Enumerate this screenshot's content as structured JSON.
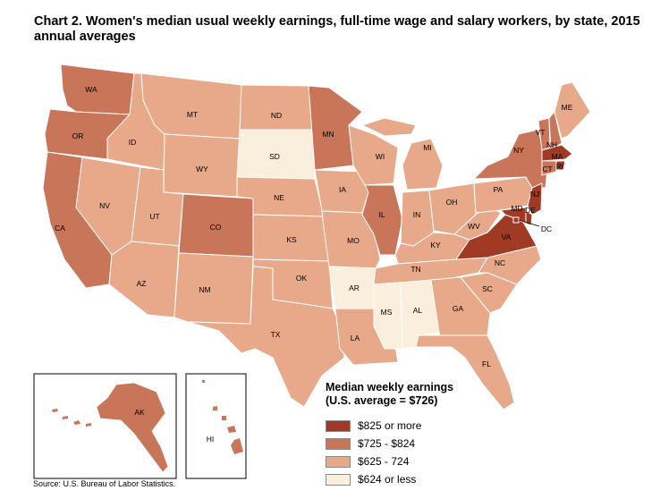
{
  "title": "Chart 2. Women's median usual weekly earnings, full-time wage and salary workers, by state, 2015 annual averages",
  "source": "Source: U.S. Bureau of Labor Statistics.",
  "legend": {
    "title": "Median weekly earnings",
    "subtitle": "(U.S. average = $726)",
    "items": [
      {
        "label": "$825 or more",
        "color": "#a13a24"
      },
      {
        "label": "$725 - $824",
        "color": "#c97559"
      },
      {
        "label": "$625 - 724",
        "color": "#e8a98a"
      },
      {
        "label": "$624 or less",
        "color": "#faeedd"
      }
    ]
  },
  "colors": {
    "dark": "#a13a24",
    "mid": "#c97559",
    "light": "#e8a98a",
    "pale": "#faeedd",
    "border": "#ffffff",
    "outline": "#000000"
  },
  "states": {
    "WA": "WA",
    "OR": "OR",
    "CA": "CA",
    "ID": "ID",
    "NV": "NV",
    "MT": "MT",
    "WY": "WY",
    "UT": "UT",
    "AZ": "AZ",
    "CO": "CO",
    "NM": "NM",
    "ND": "ND",
    "SD": "SD",
    "NE": "NE",
    "KS": "KS",
    "OK": "OK",
    "TX": "TX",
    "MN": "MN",
    "IA": "IA",
    "MO": "MO",
    "AR": "AR",
    "LA": "LA",
    "WI": "WI",
    "IL": "IL",
    "MI": "MI",
    "IN": "IN",
    "OH": "OH",
    "KY": "KY",
    "TN": "TN",
    "MS": "MS",
    "AL": "AL",
    "GA": "GA",
    "FL": "FL",
    "SC": "SC",
    "NC": "NC",
    "VA": "VA",
    "WV": "WV",
    "PA": "PA",
    "NY": "NY",
    "VT": "VT",
    "NH": "NH",
    "ME": "ME",
    "MA": "MA",
    "RI": "RI",
    "CT": "CT",
    "NJ": "NJ",
    "DE": "DE",
    "MD": "MD",
    "DC": "DC",
    "AK": "AK",
    "HI": "HI"
  }
}
